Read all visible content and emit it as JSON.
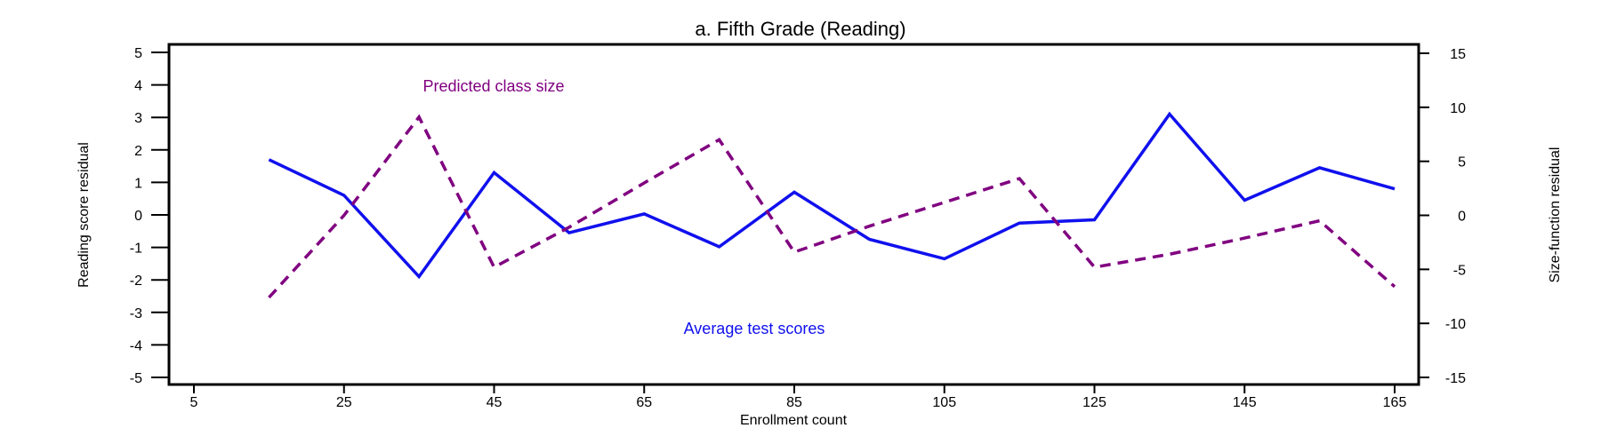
{
  "chart_data": {
    "type": "line",
    "title": "a. Fifth Grade (Reading)",
    "xlabel": "Enrollment count",
    "ylabel_left": "Reading score residual",
    "ylabel_right": "Size-function residual",
    "xlim": [
      5,
      165
    ],
    "x_ticks": [
      5,
      25,
      45,
      65,
      85,
      105,
      125,
      145,
      165
    ],
    "ylim_left": [
      -5,
      5
    ],
    "y_ticks_left": [
      -5,
      -4,
      -3,
      -2,
      -1,
      0,
      1,
      2,
      3,
      4,
      5
    ],
    "ylim_right": [
      -15,
      15
    ],
    "y_ticks_right": [
      -15,
      -10,
      -5,
      0,
      5,
      10,
      15
    ],
    "grid": false,
    "colors": {
      "test_scores": "#1010ee",
      "class_size": "#800080"
    },
    "series": [
      {
        "name": "Average test scores",
        "axis": "left",
        "style": "solid",
        "x": [
          15,
          25,
          35,
          45,
          55,
          65,
          75,
          85,
          95,
          105,
          115,
          125,
          135,
          145,
          155,
          165
        ],
        "y": [
          1.7,
          0.6,
          -1.9,
          1.3,
          -0.55,
          0.03,
          -0.98,
          0.7,
          -0.75,
          -1.35,
          -0.25,
          -0.15,
          3.1,
          0.45,
          1.45,
          0.8
        ]
      },
      {
        "name": "Predicted class size",
        "axis": "right",
        "style": "dashed",
        "x": [
          15,
          25,
          35,
          45,
          55,
          65,
          75,
          85,
          95,
          105,
          115,
          125,
          135,
          145,
          155,
          165
        ],
        "y": [
          -7.6,
          0,
          9.1,
          -4.8,
          -1.1,
          3.0,
          7.0,
          -3.4,
          -1.0,
          1.2,
          3.4,
          -4.8,
          -3.6,
          -2.1,
          -0.5,
          -6.6
        ]
      }
    ]
  }
}
